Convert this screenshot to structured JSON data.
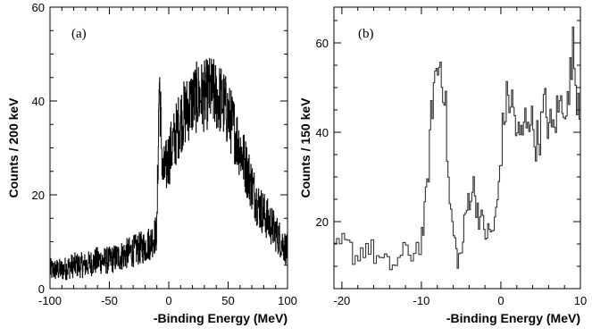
{
  "chart_data": [
    {
      "type": "line",
      "panel_label": "(a)",
      "xlabel": "-Binding Energy (MeV)",
      "ylabel": "Counts / 200 keV",
      "xlim": [
        -100,
        100
      ],
      "ylim": [
        0,
        60
      ],
      "x_ticks": [
        -100,
        -50,
        0,
        50,
        100
      ],
      "x_tick_labels": [
        "-100",
        "-50",
        "0",
        "50",
        "100"
      ],
      "y_ticks": [
        0,
        20,
        40,
        60
      ],
      "y_tick_labels": [
        "0",
        "20",
        "40",
        "60"
      ],
      "grid": false,
      "line_color": "#000000",
      "series": [
        {
          "x": [
            -100,
            -90,
            -80,
            -70,
            -60,
            -50,
            -40,
            -30,
            -20,
            -15,
            -10,
            -8,
            -5,
            -2,
            0,
            5,
            10,
            15,
            20,
            25,
            30,
            35,
            40,
            45,
            50,
            55,
            60,
            65,
            70,
            75,
            80,
            85,
            90,
            95,
            100
          ],
          "values": [
            4,
            4,
            5,
            5,
            6,
            6,
            7,
            8,
            9,
            10,
            12,
            45,
            24,
            26,
            28,
            32,
            36,
            38,
            40,
            41,
            41,
            42,
            41,
            40,
            37,
            34,
            30,
            26,
            22,
            18,
            16,
            14,
            12,
            10,
            8
          ]
        }
      ]
    },
    {
      "type": "line",
      "panel_label": "(b)",
      "xlabel": "-Binding Energy (MeV)",
      "ylabel": "Counts / 150 keV",
      "xlim": [
        -21,
        10
      ],
      "ylim": [
        5,
        68
      ],
      "x_ticks": [
        -20,
        -10,
        0,
        10
      ],
      "x_tick_labels": [
        "-20",
        "-10",
        "0",
        "10"
      ],
      "y_ticks": [
        20,
        40,
        60
      ],
      "y_tick_labels": [
        "20",
        "40",
        "60"
      ],
      "grid": false,
      "line_color": "#333333",
      "series": [
        {
          "x": [
            -21,
            -20,
            -19,
            -18,
            -17,
            -16,
            -15,
            -14,
            -13,
            -12,
            -11,
            -10,
            -9.5,
            -9,
            -8.5,
            -8,
            -7.5,
            -7,
            -6.5,
            -6,
            -5.5,
            -5,
            -4.5,
            -4,
            -3.5,
            -3,
            -2.5,
            -2,
            -1.5,
            -1,
            -0.5,
            0,
            0.5,
            1,
            1.5,
            2,
            2.5,
            3,
            3.5,
            4,
            4.5,
            5,
            5.5,
            6,
            6.5,
            7,
            7.5,
            8,
            8.5,
            9,
            9.5,
            10
          ],
          "values": [
            12,
            15,
            14,
            12,
            15,
            13,
            11,
            10,
            11,
            13,
            13,
            16,
            22,
            35,
            50,
            54,
            56,
            48,
            25,
            18,
            12,
            12,
            20,
            26,
            28,
            24,
            20,
            18,
            17,
            18,
            22,
            35,
            45,
            48,
            46,
            40,
            38,
            42,
            45,
            41,
            38,
            40,
            46,
            42,
            40,
            44,
            46,
            48,
            45,
            60,
            50,
            47
          ]
        }
      ]
    }
  ]
}
